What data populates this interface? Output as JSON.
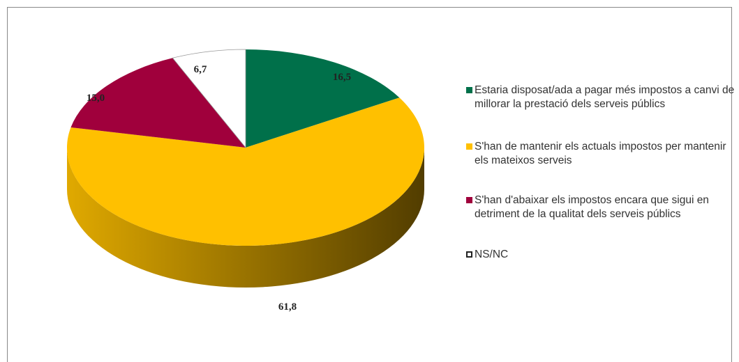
{
  "chart_data": {
    "type": "pie",
    "categories": [
      "Estaria disposat/ada a pagar més impostos a canvi de millorar la prestació dels serveis públics",
      "S'han de mantenir els actuals impostos per mantenir els mateixos serveis",
      "S'han d'abaixar els impostos encara que sigui en detriment de la qualitat dels serveis públics",
      "NS/NC"
    ],
    "values": [
      16.5,
      61.8,
      15.0,
      6.7
    ],
    "value_labels": [
      "16,5",
      "61,8",
      "15,0",
      "6,7"
    ],
    "colors": [
      "#00704a",
      "#ffc000",
      "#a0003c",
      "#ffffff"
    ],
    "legend": "right"
  }
}
